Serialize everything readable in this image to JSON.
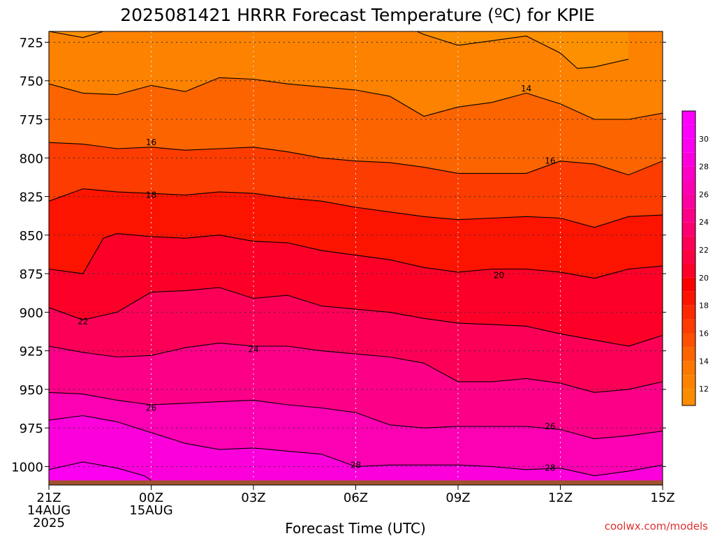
{
  "chart_data": {
    "type": "heatmap",
    "title": "2025081421 HRRR Forecast Temperature (ºC) for KPIE",
    "xlabel": "Forecast Time (UTC)",
    "ylabel": "",
    "credit": "coolwx.com/models",
    "x_ticks": [
      {
        "hour": 0,
        "lines": [
          "21Z",
          "14AUG",
          "2025"
        ]
      },
      {
        "hour": 3,
        "lines": [
          "00Z",
          "15AUG"
        ]
      },
      {
        "hour": 6,
        "lines": [
          "03Z"
        ]
      },
      {
        "hour": 9,
        "lines": [
          "06Z"
        ]
      },
      {
        "hour": 12,
        "lines": [
          "09Z"
        ]
      },
      {
        "hour": 15,
        "lines": [
          "12Z"
        ]
      },
      {
        "hour": 18,
        "lines": [
          "15Z"
        ]
      }
    ],
    "y_ticks": [
      725,
      750,
      775,
      800,
      825,
      850,
      875,
      900,
      925,
      950,
      975,
      1000
    ],
    "xlim": [
      0,
      18
    ],
    "ylim": [
      1012,
      718
    ],
    "colorbar": {
      "ticks": [
        12,
        14,
        16,
        18,
        20,
        22,
        24,
        26,
        28,
        30
      ],
      "levels": [
        10,
        12,
        13,
        14,
        15,
        16,
        17,
        18,
        19,
        20,
        21,
        22,
        23,
        24,
        25,
        26,
        27,
        28,
        29,
        30,
        31,
        32
      ],
      "colors": [
        "#fc8c00",
        "#fc8200",
        "#fc7800",
        "#fc6400",
        "#fc5000",
        "#fc3c00",
        "#fc2800",
        "#fc1400",
        "#fc0000",
        "#fc0028",
        "#fc0040",
        "#fc0058",
        "#fc0070",
        "#fc0088",
        "#fc00a0",
        "#fc00b4",
        "#fc00c8",
        "#fc00dc",
        "#fc00f0",
        "#fc00fc",
        "#fc00fc"
      ]
    },
    "ground_color": "#a0522d",
    "surface_pressure": 1009,
    "contours": [
      {
        "level": 12,
        "points": [
          [
            0,
            718
          ],
          [
            1,
            722
          ],
          [
            1.6,
            718
          ]
        ],
        "labels": []
      },
      {
        "level": 12,
        "points": [
          [
            10.8,
            718
          ],
          [
            11,
            720
          ],
          [
            12,
            727
          ],
          [
            13,
            724
          ],
          [
            14,
            721
          ],
          [
            15,
            732
          ],
          [
            15.5,
            742
          ],
          [
            16,
            741
          ],
          [
            17,
            736
          ]
        ],
        "labels": []
      },
      {
        "level": 13,
        "points": [
          [
            0,
            752
          ],
          [
            1,
            758
          ],
          [
            2,
            759
          ],
          [
            3,
            753
          ],
          [
            4,
            757
          ],
          [
            5,
            748
          ],
          [
            6,
            749
          ],
          [
            7,
            752
          ],
          [
            8,
            754
          ],
          [
            9,
            756
          ],
          [
            10,
            760
          ],
          [
            11,
            773
          ],
          [
            12,
            767
          ],
          [
            13,
            764
          ],
          [
            14,
            758
          ],
          [
            15,
            765
          ],
          [
            16,
            775
          ],
          [
            17,
            775
          ],
          [
            18,
            771
          ]
        ],
        "labels": [
          {
            "x": 14,
            "y": 755,
            "text": "14"
          }
        ]
      },
      {
        "level": 15,
        "points": [
          [
            0,
            790
          ],
          [
            1,
            791
          ],
          [
            2,
            794
          ],
          [
            3,
            793
          ],
          [
            4,
            795
          ],
          [
            5,
            794
          ],
          [
            6,
            793
          ],
          [
            7,
            796
          ],
          [
            8,
            800
          ],
          [
            9,
            802
          ],
          [
            10,
            803
          ],
          [
            11,
            806
          ],
          [
            12,
            810
          ],
          [
            13,
            810
          ],
          [
            14,
            810
          ],
          [
            15,
            802
          ],
          [
            16,
            804
          ],
          [
            17,
            811
          ],
          [
            18,
            802
          ]
        ],
        "labels": [
          {
            "x": 3,
            "y": 790,
            "text": "16"
          },
          {
            "x": 14.7,
            "y": 802,
            "text": "16"
          }
        ]
      },
      {
        "level": 17,
        "points": [
          [
            0,
            828
          ],
          [
            1,
            820
          ],
          [
            2,
            822
          ],
          [
            3,
            823
          ],
          [
            4,
            824
          ],
          [
            5,
            822
          ],
          [
            6,
            823
          ],
          [
            7,
            826
          ],
          [
            8,
            828
          ],
          [
            9,
            832
          ],
          [
            10,
            835
          ],
          [
            11,
            838
          ],
          [
            12,
            840
          ],
          [
            13,
            839
          ],
          [
            14,
            838
          ],
          [
            15,
            839
          ],
          [
            16,
            845
          ],
          [
            17,
            838
          ],
          [
            18,
            837
          ]
        ],
        "labels": [
          {
            "x": 3,
            "y": 824,
            "text": "18"
          }
        ]
      },
      {
        "level": 19,
        "points": [
          [
            0,
            872
          ],
          [
            1,
            875
          ],
          [
            1.6,
            852
          ],
          [
            2,
            849
          ],
          [
            3,
            851
          ],
          [
            4,
            852
          ],
          [
            5,
            850
          ],
          [
            6,
            854
          ],
          [
            7,
            855
          ],
          [
            8,
            860
          ],
          [
            9,
            863
          ],
          [
            10,
            866
          ],
          [
            11,
            871
          ],
          [
            12,
            874
          ],
          [
            13,
            872
          ],
          [
            14,
            872
          ],
          [
            15,
            874
          ],
          [
            16,
            878
          ],
          [
            17,
            872
          ],
          [
            18,
            870
          ]
        ],
        "labels": [
          {
            "x": 13.2,
            "y": 876,
            "text": "20"
          }
        ]
      },
      {
        "level": 21,
        "points": [
          [
            0,
            897
          ],
          [
            1,
            905
          ],
          [
            2,
            900
          ],
          [
            3,
            887
          ],
          [
            4,
            886
          ],
          [
            5,
            884
          ],
          [
            6,
            891
          ],
          [
            7,
            889
          ],
          [
            8,
            896
          ],
          [
            9,
            898
          ],
          [
            10,
            900
          ],
          [
            11,
            904
          ],
          [
            12,
            907
          ],
          [
            13,
            908
          ],
          [
            14,
            909
          ],
          [
            15,
            914
          ],
          [
            16,
            918
          ],
          [
            17,
            922
          ],
          [
            18,
            915
          ]
        ],
        "labels": [
          {
            "x": 1,
            "y": 906,
            "text": "22"
          }
        ]
      },
      {
        "level": 23,
        "points": [
          [
            0,
            922
          ],
          [
            1,
            926
          ],
          [
            2,
            929
          ],
          [
            3,
            928
          ],
          [
            4,
            923
          ],
          [
            5,
            920
          ],
          [
            6,
            922
          ],
          [
            7,
            922
          ],
          [
            8,
            925
          ],
          [
            9,
            927
          ],
          [
            10,
            929
          ],
          [
            11,
            933
          ],
          [
            12,
            945
          ],
          [
            13,
            945
          ],
          [
            14,
            943
          ],
          [
            15,
            946
          ],
          [
            16,
            952
          ],
          [
            17,
            950
          ],
          [
            18,
            945
          ]
        ],
        "labels": [
          {
            "x": 6,
            "y": 924,
            "text": "24"
          }
        ]
      },
      {
        "level": 25,
        "points": [
          [
            0,
            952
          ],
          [
            1,
            953
          ],
          [
            2,
            957
          ],
          [
            3,
            960
          ],
          [
            4,
            959
          ],
          [
            5,
            958
          ],
          [
            6,
            957
          ],
          [
            7,
            960
          ],
          [
            8,
            962
          ],
          [
            9,
            965
          ],
          [
            10,
            973
          ],
          [
            11,
            975
          ],
          [
            12,
            974
          ],
          [
            13,
            974
          ],
          [
            14,
            974
          ],
          [
            15,
            976
          ],
          [
            16,
            982
          ],
          [
            17,
            980
          ],
          [
            18,
            977
          ]
        ],
        "labels": [
          {
            "x": 3,
            "y": 962,
            "text": "26"
          },
          {
            "x": 14.7,
            "y": 974,
            "text": "26"
          }
        ]
      },
      {
        "level": 27,
        "points": [
          [
            0,
            970
          ],
          [
            1,
            967
          ],
          [
            2,
            971
          ],
          [
            3,
            978
          ],
          [
            4,
            985
          ],
          [
            5,
            989
          ],
          [
            6,
            988
          ],
          [
            7,
            990
          ],
          [
            8,
            992
          ],
          [
            9,
            1000
          ],
          [
            10,
            999
          ],
          [
            11,
            999
          ],
          [
            12,
            999
          ],
          [
            13,
            1000
          ],
          [
            14,
            1002
          ],
          [
            15,
            1001
          ],
          [
            16,
            1006
          ],
          [
            17,
            1003
          ],
          [
            18,
            999
          ]
        ],
        "labels": [
          {
            "x": 9,
            "y": 999,
            "text": "28"
          },
          {
            "x": 14.7,
            "y": 1001,
            "text": "28"
          }
        ]
      },
      {
        "level": 29,
        "points": [
          [
            0,
            1002
          ],
          [
            1,
            997
          ],
          [
            2,
            1001
          ],
          [
            2.8,
            1006
          ],
          [
            3,
            1009
          ]
        ],
        "labels": []
      }
    ]
  }
}
